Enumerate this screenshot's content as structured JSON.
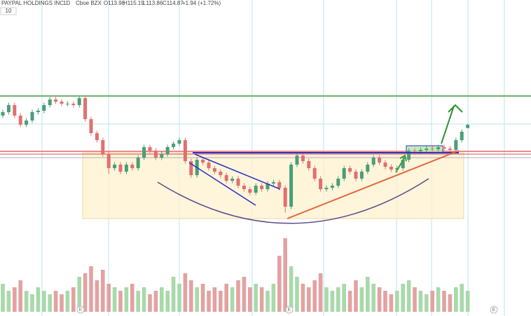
{
  "header": {
    "name": "PAYPAL HOLDINGS INC",
    "interval": "1D",
    "exchange": "Cboe BZX",
    "open": "O113.98",
    "high": "H115.19",
    "low": "L113.86",
    "close": "C114.87",
    "change": "+1.94 (+1.72%)",
    "volume_length": "10"
  },
  "chart_data": {
    "type": "candlestick",
    "up_color": "#4a9e78",
    "down_color": "#e07070",
    "volume_up_color": "#a8d9aa",
    "volume_down_color": "#e3a2a2",
    "ylim": [
      84.5,
      147.5
    ],
    "y2lim": [
      0,
      60
    ],
    "open": [
      117.5,
      118.5,
      120.5,
      117.5,
      114.9,
      116.1,
      118.5,
      118.9,
      120.5,
      122.1,
      121.5,
      120.9,
      120.9,
      120.5,
      122.5,
      116.5,
      112.5,
      110.5,
      106.5,
      102.5,
      103.5,
      101.5,
      103.5,
      102.5,
      105.5,
      108.5,
      107.5,
      105.5,
      106.5,
      108.5,
      109.5,
      110.5,
      104.5,
      100.5,
      104.9,
      104.1,
      102.5,
      101.5,
      100.5,
      98.9,
      99.5,
      97.5,
      96.5,
      95.5,
      97.5,
      96.5,
      98.1,
      98.5,
      96.9,
      91.5,
      103.5,
      106.1,
      104.5,
      102.5,
      99.5,
      96.5,
      96.9,
      97.5,
      99.5,
      102.5,
      101.5,
      99.5,
      101.5,
      103.5,
      105.5,
      104.1,
      102.9,
      102.1,
      102.5,
      104.9,
      107.5,
      107.3,
      107.7,
      108.1,
      107.9,
      108.5,
      108.1,
      107.7,
      110.5,
      113.98
    ],
    "high": [
      119.2,
      121.2,
      121.2,
      118.2,
      116.8,
      119.2,
      119.6,
      121.2,
      122.8,
      122.8,
      122.2,
      121.6,
      121.6,
      123.2,
      123.2,
      117.2,
      113.2,
      111.2,
      107.2,
      104.2,
      104.2,
      104.2,
      104.2,
      106.2,
      109.2,
      109.2,
      108.2,
      107.2,
      109.2,
      110.2,
      111.2,
      111.2,
      105.2,
      105.6,
      105.6,
      104.8,
      103.2,
      102.2,
      101.2,
      100.2,
      100.2,
      98.2,
      97.2,
      98.2,
      98.2,
      98.8,
      99.2,
      99.2,
      97.6,
      104.2,
      106.8,
      106.8,
      105.2,
      103.2,
      100.2,
      97.6,
      98.2,
      100.2,
      103.2,
      103.2,
      102.2,
      102.2,
      104.2,
      106.2,
      106.2,
      104.8,
      103.6,
      103.2,
      105.6,
      108.2,
      108.2,
      108.4,
      108.8,
      108.8,
      109.2,
      109.2,
      108.8,
      111.2,
      113.6,
      115.19
    ],
    "low": [
      116.8,
      117.8,
      116.8,
      114.2,
      114.2,
      115.4,
      117.8,
      118.2,
      119.8,
      120.8,
      120.2,
      120.2,
      119.8,
      119.8,
      115.8,
      111.8,
      109.8,
      105.8,
      100.8,
      101.8,
      100.8,
      100.8,
      101.8,
      101.8,
      104.8,
      106.8,
      104.8,
      104.8,
      105.8,
      107.8,
      108.8,
      103.8,
      99.8,
      99.8,
      103.4,
      101.8,
      100.8,
      99.8,
      98.2,
      98.2,
      96.8,
      95.8,
      94.8,
      94.8,
      95.8,
      95.8,
      97.4,
      96.2,
      89.8,
      90.8,
      102.8,
      103.8,
      101.8,
      98.8,
      95.8,
      95.8,
      96.2,
      96.8,
      98.8,
      100.8,
      98.8,
      98.8,
      100.8,
      102.8,
      103.4,
      102.2,
      101.4,
      101.4,
      101.8,
      104.2,
      106.6,
      106.6,
      107.0,
      107.2,
      107.2,
      107.4,
      107.0,
      107.0,
      109.8,
      113.86
    ],
    "close": [
      118.5,
      120.5,
      117.5,
      114.9,
      116.1,
      118.5,
      118.9,
      120.5,
      122.1,
      121.5,
      120.9,
      120.9,
      120.5,
      122.5,
      116.5,
      112.5,
      110.5,
      106.5,
      102.5,
      103.5,
      101.5,
      103.5,
      102.5,
      105.5,
      108.5,
      107.5,
      105.5,
      106.5,
      108.5,
      109.5,
      110.5,
      104.5,
      100.5,
      104.9,
      104.1,
      102.5,
      101.5,
      100.5,
      98.9,
      99.5,
      97.5,
      96.5,
      95.5,
      97.5,
      96.5,
      98.1,
      98.5,
      96.9,
      91.5,
      103.5,
      106.1,
      104.5,
      102.5,
      99.5,
      96.5,
      96.9,
      97.5,
      99.5,
      102.5,
      101.5,
      99.5,
      101.5,
      103.5,
      105.5,
      104.1,
      102.9,
      102.1,
      102.5,
      104.9,
      107.5,
      107.3,
      107.7,
      108.1,
      107.9,
      108.5,
      108.1,
      107.7,
      110.5,
      112.9,
      114.87
    ],
    "volume": [
      8,
      6,
      7,
      9,
      6,
      5,
      7,
      6,
      5,
      6,
      5,
      6,
      7,
      10,
      11,
      13,
      9,
      12,
      8,
      7,
      6,
      7,
      8,
      6,
      7,
      5,
      6,
      7,
      6,
      10,
      8,
      11,
      9,
      7,
      8,
      6,
      7,
      6,
      8,
      7,
      9,
      10,
      7,
      8,
      7,
      6,
      8,
      16,
      21,
      13,
      10,
      8,
      7,
      9,
      11,
      7,
      6,
      7,
      8,
      6,
      9,
      7,
      10,
      8,
      7,
      6,
      5,
      6,
      8,
      9,
      7,
      6,
      5,
      6,
      7,
      6,
      5,
      7,
      8,
      6
    ],
    "events": [
      "E",
      "E",
      "E"
    ]
  }
}
